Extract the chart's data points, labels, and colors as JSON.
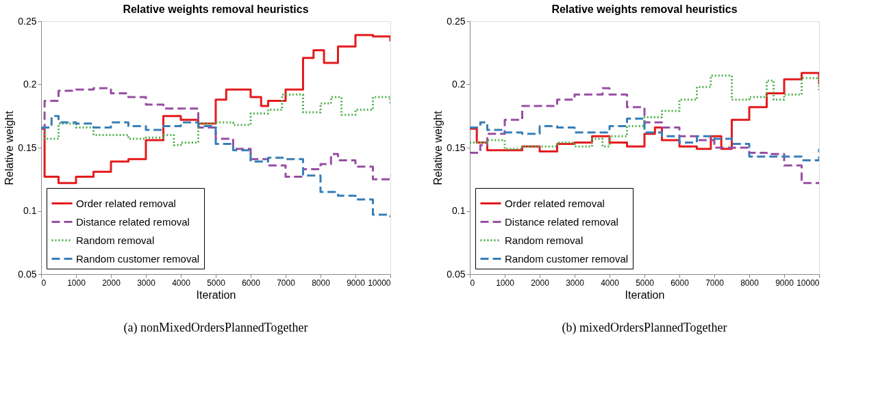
{
  "chart_data": [
    {
      "type": "step",
      "title": "Relative weights removal heuristics",
      "xlabel": "Iteration",
      "ylabel": "Relative weight",
      "xlim": [
        0,
        10000
      ],
      "ylim": [
        0.05,
        0.25
      ],
      "xticks": [
        0,
        1000,
        2000,
        3000,
        4000,
        5000,
        6000,
        7000,
        8000,
        9000,
        10000
      ],
      "yticks": [
        0.05,
        0.1,
        0.15,
        0.2,
        0.25
      ],
      "grid": false,
      "legend": "bottom left",
      "annotations": [
        "(a) nonMixedOrdersPlannedTogether"
      ],
      "series": [
        {
          "name": "Order related removal",
          "color": "#e41a1c",
          "line_style": "solid",
          "x": [
            0,
            100,
            500,
            1000,
            1500,
            2000,
            2500,
            3000,
            3500,
            4000,
            4500,
            5000,
            5300,
            6000,
            6300,
            6500,
            7000,
            7500,
            7800,
            8100,
            8500,
            9000,
            9500,
            10000
          ],
          "values": [
            0.165,
            0.127,
            0.122,
            0.127,
            0.131,
            0.139,
            0.141,
            0.156,
            0.175,
            0.172,
            0.169,
            0.188,
            0.196,
            0.19,
            0.183,
            0.187,
            0.196,
            0.221,
            0.227,
            0.217,
            0.23,
            0.239,
            0.238,
            0.234
          ]
        },
        {
          "name": "Distance related removal",
          "color": "#984ea3",
          "line_style": "dashed",
          "x": [
            0,
            100,
            500,
            1000,
            1500,
            2000,
            2500,
            3000,
            3500,
            4000,
            4500,
            5000,
            5500,
            6000,
            6500,
            7000,
            7500,
            8000,
            8300,
            8500,
            9000,
            9500,
            10000
          ],
          "values": [
            0.165,
            0.187,
            0.195,
            0.196,
            0.197,
            0.193,
            0.19,
            0.184,
            0.181,
            0.181,
            0.166,
            0.157,
            0.149,
            0.141,
            0.136,
            0.127,
            0.133,
            0.137,
            0.145,
            0.14,
            0.135,
            0.125,
            0.128
          ]
        },
        {
          "name": "Random removal",
          "color": "#4daf4a",
          "line_style": "dotted",
          "x": [
            0,
            100,
            500,
            1000,
            1500,
            2000,
            2500,
            3000,
            3500,
            3800,
            4000,
            4500,
            5000,
            5500,
            6000,
            6500,
            6900,
            7500,
            8000,
            8300,
            8600,
            9000,
            9500,
            10000
          ],
          "values": [
            0.166,
            0.157,
            0.169,
            0.166,
            0.16,
            0.16,
            0.157,
            0.158,
            0.16,
            0.152,
            0.154,
            0.169,
            0.17,
            0.168,
            0.177,
            0.18,
            0.192,
            0.178,
            0.185,
            0.19,
            0.176,
            0.18,
            0.19,
            0.184
          ]
        },
        {
          "name": "Random customer removal",
          "color": "#377eb8",
          "line_style": "dashed",
          "x": [
            0,
            300,
            500,
            1000,
            1500,
            2000,
            2500,
            3000,
            3500,
            4000,
            4500,
            5000,
            5500,
            6000,
            6500,
            7000,
            7500,
            8000,
            8500,
            9000,
            9500,
            10000
          ],
          "values": [
            0.166,
            0.175,
            0.17,
            0.169,
            0.166,
            0.17,
            0.167,
            0.164,
            0.167,
            0.17,
            0.167,
            0.153,
            0.148,
            0.139,
            0.142,
            0.141,
            0.128,
            0.115,
            0.112,
            0.109,
            0.097,
            0.095
          ]
        }
      ]
    },
    {
      "type": "step",
      "title": "Relative weights removal heuristics",
      "xlabel": "Iteration",
      "ylabel": "Relative weight",
      "xlim": [
        0,
        10000
      ],
      "ylim": [
        0.05,
        0.25
      ],
      "xticks": [
        0,
        1000,
        2000,
        3000,
        4000,
        5000,
        6000,
        7000,
        8000,
        9000,
        10000
      ],
      "yticks": [
        0.05,
        0.1,
        0.15,
        0.2,
        0.25
      ],
      "grid": false,
      "legend": "bottom left",
      "annotations": [
        "(b) mixedOrdersPlannedTogether"
      ],
      "series": [
        {
          "name": "Order related removal",
          "color": "#e41a1c",
          "line_style": "solid",
          "x": [
            0,
            200,
            500,
            1000,
            1500,
            2000,
            2500,
            3000,
            3500,
            4000,
            4500,
            5000,
            5300,
            5500,
            6000,
            6500,
            6900,
            7200,
            7500,
            8000,
            8500,
            9000,
            9500,
            10000
          ],
          "values": [
            0.165,
            0.154,
            0.148,
            0.148,
            0.151,
            0.147,
            0.153,
            0.154,
            0.159,
            0.154,
            0.151,
            0.161,
            0.166,
            0.156,
            0.151,
            0.149,
            0.159,
            0.149,
            0.172,
            0.182,
            0.193,
            0.204,
            0.209,
            0.2
          ]
        },
        {
          "name": "Distance related removal",
          "color": "#984ea3",
          "line_style": "dashed",
          "x": [
            0,
            300,
            500,
            1000,
            1500,
            2000,
            2500,
            3000,
            3500,
            3800,
            4000,
            4500,
            5000,
            5500,
            6000,
            6500,
            7000,
            7500,
            8000,
            8500,
            9000,
            9500,
            10000
          ],
          "values": [
            0.146,
            0.152,
            0.161,
            0.172,
            0.183,
            0.183,
            0.188,
            0.192,
            0.192,
            0.197,
            0.192,
            0.182,
            0.17,
            0.166,
            0.159,
            0.156,
            0.15,
            0.15,
            0.146,
            0.145,
            0.136,
            0.122,
            0.123
          ]
        },
        {
          "name": "Random removal",
          "color": "#4daf4a",
          "line_style": "dotted",
          "x": [
            0,
            500,
            1000,
            1500,
            2000,
            2500,
            3000,
            3500,
            3800,
            4000,
            4500,
            5000,
            5500,
            6000,
            6500,
            6900,
            7500,
            8000,
            8500,
            8700,
            9000,
            9500,
            10000
          ],
          "values": [
            0.154,
            0.156,
            0.149,
            0.151,
            0.151,
            0.154,
            0.151,
            0.157,
            0.151,
            0.159,
            0.167,
            0.174,
            0.179,
            0.188,
            0.198,
            0.207,
            0.188,
            0.19,
            0.203,
            0.188,
            0.192,
            0.205,
            0.195
          ]
        },
        {
          "name": "Random customer removal",
          "color": "#377eb8",
          "line_style": "dashed",
          "x": [
            0,
            300,
            500,
            1000,
            1500,
            2000,
            2500,
            3000,
            3500,
            4000,
            4500,
            5000,
            5500,
            6000,
            6500,
            7000,
            7500,
            8000,
            8500,
            9000,
            9500,
            10000
          ],
          "values": [
            0.166,
            0.17,
            0.164,
            0.162,
            0.161,
            0.167,
            0.166,
            0.162,
            0.162,
            0.167,
            0.173,
            0.162,
            0.159,
            0.154,
            0.159,
            0.157,
            0.153,
            0.143,
            0.143,
            0.143,
            0.14,
            0.149
          ]
        }
      ]
    }
  ]
}
